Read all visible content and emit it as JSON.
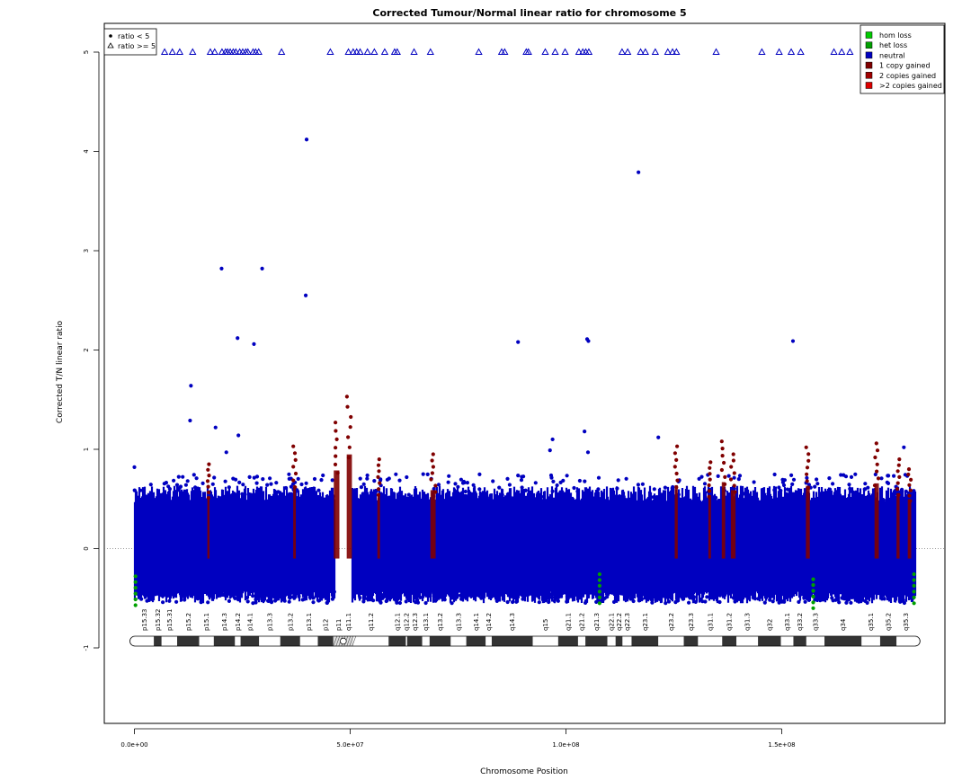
{
  "chart_data": {
    "type": "scatter",
    "title": "Corrected Tumour/Normal linear ratio for chromosome  5",
    "xlabel": "Chromosome Position",
    "ylabel": "Corrected T/N linear ratio",
    "xlim": [
      -14000000,
      189000000
    ],
    "ylim": [
      -1.8,
      5.25
    ],
    "x_ticks": [
      0,
      50000000,
      100000000,
      150000000
    ],
    "x_tick_labels": [
      "0.0e+00",
      "5.0e+07",
      "1.0e+08",
      "1.5e+08"
    ],
    "y_ticks": [
      -1,
      0,
      1,
      2,
      3,
      4,
      5
    ],
    "y_tick_labels": [
      "-1",
      "0",
      "1",
      "2",
      "3",
      "4",
      "5"
    ],
    "reference_line_y": 0,
    "chromosome_start": 0,
    "chromosome_end": 181000000,
    "centromere": [
      46500000,
      50500000
    ],
    "shape_legend": {
      "placement": "top-left",
      "entries": [
        {
          "label": "ratio < 5",
          "symbol": "filled-circle"
        },
        {
          "label": "ratio >= 5",
          "symbol": "open-triangle"
        }
      ]
    },
    "color_legend": {
      "placement": "top-right",
      "entries": [
        {
          "label": "hom loss",
          "color": "#00cc00"
        },
        {
          "label": "het loss",
          "color": "#00a000"
        },
        {
          "label": "neutral",
          "color": "#0000c0"
        },
        {
          "label": "1 copy gained",
          "color": "#800000"
        },
        {
          "label": "2 copies gained",
          "color": "#a00000"
        },
        {
          "label": ">2 copies gained",
          "color": "#dd0000"
        }
      ]
    },
    "series": [
      {
        "name": "neutral",
        "color": "#0000c0",
        "shape": "circle",
        "typical_range": [
          -0.5,
          0.55
        ]
      },
      {
        "name": "1 copy gained",
        "color": "#800000",
        "shape": "circle"
      },
      {
        "name": "het loss",
        "color": "#00a000",
        "shape": "circle"
      }
    ],
    "gain_regions": [
      {
        "x": [
          46200000,
          47500000
        ],
        "y_max": 1.27
      },
      {
        "x": [
          49200000,
          50400000
        ],
        "y_max": 1.53
      },
      {
        "x": [
          68600000,
          69800000
        ],
        "y_max": 0.95
      },
      {
        "x": [
          36800000,
          37400000
        ],
        "y_max": 1.03
      },
      {
        "x": [
          56300000,
          56900000
        ],
        "y_max": 0.9
      },
      {
        "x": [
          16900000,
          17400000
        ],
        "y_max": 0.85
      },
      {
        "x": [
          125200000,
          125900000
        ],
        "y_max": 1.03
      },
      {
        "x": [
          133000000,
          133600000
        ],
        "y_max": 0.87
      },
      {
        "x": [
          136100000,
          136900000
        ],
        "y_max": 1.08
      },
      {
        "x": [
          138200000,
          139300000
        ],
        "y_max": 0.95
      },
      {
        "x": [
          155600000,
          156500000
        ],
        "y_max": 1.02
      },
      {
        "x": [
          171500000,
          172500000
        ],
        "y_max": 1.06
      },
      {
        "x": [
          176600000,
          177300000
        ],
        "y_max": 0.9
      },
      {
        "x": [
          179200000,
          180000000
        ],
        "y_max": 0.8
      }
    ],
    "loss_regions": [
      {
        "x": [
          0,
          500000
        ],
        "y_min": -0.57
      },
      {
        "x": [
          180300000,
          181000000
        ],
        "y_min": -0.55
      },
      {
        "x": [
          107600000,
          108000000
        ],
        "y_min": -0.55
      },
      {
        "x": [
          157100000,
          157500000
        ],
        "y_min": -0.6
      }
    ],
    "outliers_triangles_at_5": [
      4000000,
      7000000,
      8800000,
      10500000,
      13500000,
      17600000,
      18600000,
      20300000,
      21100000,
      21600000,
      22200000,
      22900000,
      23500000,
      24400000,
      25100000,
      25800000,
      26300000,
      27500000,
      28100000,
      28800000,
      34100000,
      45400000,
      49600000,
      50700000,
      51500000,
      52300000,
      54000000,
      55600000,
      58000000,
      60300000,
      60900000,
      64800000,
      68600000,
      79800000,
      85100000,
      85800000,
      90800000,
      91300000,
      95200000,
      97500000,
      99800000,
      103000000,
      103900000,
      104600000,
      105300000,
      113000000,
      114300000,
      117300000,
      118400000,
      120700000,
      123600000,
      124700000,
      125600000,
      134800000,
      145400000,
      149400000,
      152200000,
      154400000,
      162100000,
      163900000,
      165800000,
      171200000
    ],
    "outliers_points": [
      {
        "x": 39900000,
        "y": 4.12
      },
      {
        "x": 116800000,
        "y": 3.79
      },
      {
        "x": 20200000,
        "y": 2.82
      },
      {
        "x": 29600000,
        "y": 2.82
      },
      {
        "x": 39700000,
        "y": 2.55
      },
      {
        "x": 23900000,
        "y": 2.12
      },
      {
        "x": 27700000,
        "y": 2.06
      },
      {
        "x": 88900000,
        "y": 2.08
      },
      {
        "x": 104900000,
        "y": 2.11
      },
      {
        "x": 105200000,
        "y": 2.09
      },
      {
        "x": 152600000,
        "y": 2.09
      },
      {
        "x": 13100000,
        "y": 1.64
      },
      {
        "x": 12900000,
        "y": 1.29
      },
      {
        "x": 18800000,
        "y": 1.22
      },
      {
        "x": 24100000,
        "y": 1.14
      },
      {
        "x": 104300000,
        "y": 1.18
      },
      {
        "x": 96900000,
        "y": 1.1
      },
      {
        "x": 121400000,
        "y": 1.12
      },
      {
        "x": 96300000,
        "y": 0.99
      },
      {
        "x": 105100000,
        "y": 0.97
      },
      {
        "x": 21300000,
        "y": 0.97
      },
      {
        "x": 0,
        "y": 0.82
      },
      {
        "x": 178300000,
        "y": 1.02
      }
    ],
    "cytobands": [
      {
        "name": "p15.33",
        "start": 0,
        "end": 4500000,
        "stain": "gneg"
      },
      {
        "name": "p15.32",
        "start": 4500000,
        "end": 6300000,
        "stain": "gpos"
      },
      {
        "name": "p15.31",
        "start": 6300000,
        "end": 9900000,
        "stain": "gneg"
      },
      {
        "name": "p15.2",
        "start": 9900000,
        "end": 15000000,
        "stain": "gpos"
      },
      {
        "name": "p15.1",
        "start": 15000000,
        "end": 18400000,
        "stain": "gneg"
      },
      {
        "name": "p14.3",
        "start": 18400000,
        "end": 23300000,
        "stain": "gpos"
      },
      {
        "name": "p14.2",
        "start": 23300000,
        "end": 24600000,
        "stain": "gneg"
      },
      {
        "name": "p14.1",
        "start": 24600000,
        "end": 28900000,
        "stain": "gpos"
      },
      {
        "name": "p13.3",
        "start": 28900000,
        "end": 33800000,
        "stain": "gneg"
      },
      {
        "name": "p13.2",
        "start": 33800000,
        "end": 38400000,
        "stain": "gpos"
      },
      {
        "name": "p13.1",
        "start": 38400000,
        "end": 42500000,
        "stain": "gneg"
      },
      {
        "name": "p12",
        "start": 42500000,
        "end": 46100000,
        "stain": "gpos"
      },
      {
        "name": "p11",
        "start": 46100000,
        "end": 48400000,
        "stain": "acen"
      },
      {
        "name": "q11.1",
        "start": 48400000,
        "end": 50700000,
        "stain": "acen"
      },
      {
        "name": "q11.2",
        "start": 50700000,
        "end": 58900000,
        "stain": "gneg"
      },
      {
        "name": "q12.1",
        "start": 58900000,
        "end": 62900000,
        "stain": "gpos"
      },
      {
        "name": "q12.2",
        "start": 62900000,
        "end": 63200000,
        "stain": "gneg"
      },
      {
        "name": "q12.3",
        "start": 63200000,
        "end": 66700000,
        "stain": "gpos"
      },
      {
        "name": "q13.1",
        "start": 66700000,
        "end": 68400000,
        "stain": "gneg"
      },
      {
        "name": "q13.2",
        "start": 68400000,
        "end": 73300000,
        "stain": "gpos"
      },
      {
        "name": "q13.3",
        "start": 73300000,
        "end": 76900000,
        "stain": "gneg"
      },
      {
        "name": "q14.1",
        "start": 76900000,
        "end": 81400000,
        "stain": "gpos"
      },
      {
        "name": "q14.2",
        "start": 81400000,
        "end": 82800000,
        "stain": "gneg"
      },
      {
        "name": "q14.3",
        "start": 82800000,
        "end": 92300000,
        "stain": "gpos"
      },
      {
        "name": "q15",
        "start": 92300000,
        "end": 98200000,
        "stain": "gneg"
      },
      {
        "name": "q21.1",
        "start": 98200000,
        "end": 102800000,
        "stain": "gpos"
      },
      {
        "name": "q21.2",
        "start": 102800000,
        "end": 104500000,
        "stain": "gneg"
      },
      {
        "name": "q21.3",
        "start": 104500000,
        "end": 109600000,
        "stain": "gpos"
      },
      {
        "name": "q22.1",
        "start": 109600000,
        "end": 111500000,
        "stain": "gneg"
      },
      {
        "name": "q22.2",
        "start": 111500000,
        "end": 113100000,
        "stain": "gpos"
      },
      {
        "name": "q22.3",
        "start": 113100000,
        "end": 115200000,
        "stain": "gneg"
      },
      {
        "name": "q23.1",
        "start": 115200000,
        "end": 121400000,
        "stain": "gpos"
      },
      {
        "name": "q23.2",
        "start": 121400000,
        "end": 127300000,
        "stain": "gneg"
      },
      {
        "name": "q23.3",
        "start": 127300000,
        "end": 130600000,
        "stain": "gpos"
      },
      {
        "name": "q31.1",
        "start": 130600000,
        "end": 136200000,
        "stain": "gneg"
      },
      {
        "name": "q31.2",
        "start": 136200000,
        "end": 139500000,
        "stain": "gpos"
      },
      {
        "name": "q31.3",
        "start": 139500000,
        "end": 144500000,
        "stain": "gneg"
      },
      {
        "name": "q32",
        "start": 144500000,
        "end": 149800000,
        "stain": "gpos"
      },
      {
        "name": "q33.1",
        "start": 149800000,
        "end": 152700000,
        "stain": "gneg"
      },
      {
        "name": "q33.2",
        "start": 152700000,
        "end": 155700000,
        "stain": "gpos"
      },
      {
        "name": "q33.3",
        "start": 155700000,
        "end": 159900000,
        "stain": "gneg"
      },
      {
        "name": "q34",
        "start": 159900000,
        "end": 168500000,
        "stain": "gpos"
      },
      {
        "name": "q35.1",
        "start": 168500000,
        "end": 172800000,
        "stain": "gneg"
      },
      {
        "name": "q35.2",
        "start": 172800000,
        "end": 176600000,
        "stain": "gpos"
      },
      {
        "name": "q35.3",
        "start": 176600000,
        "end": 181000000,
        "stain": "gneg"
      }
    ]
  }
}
